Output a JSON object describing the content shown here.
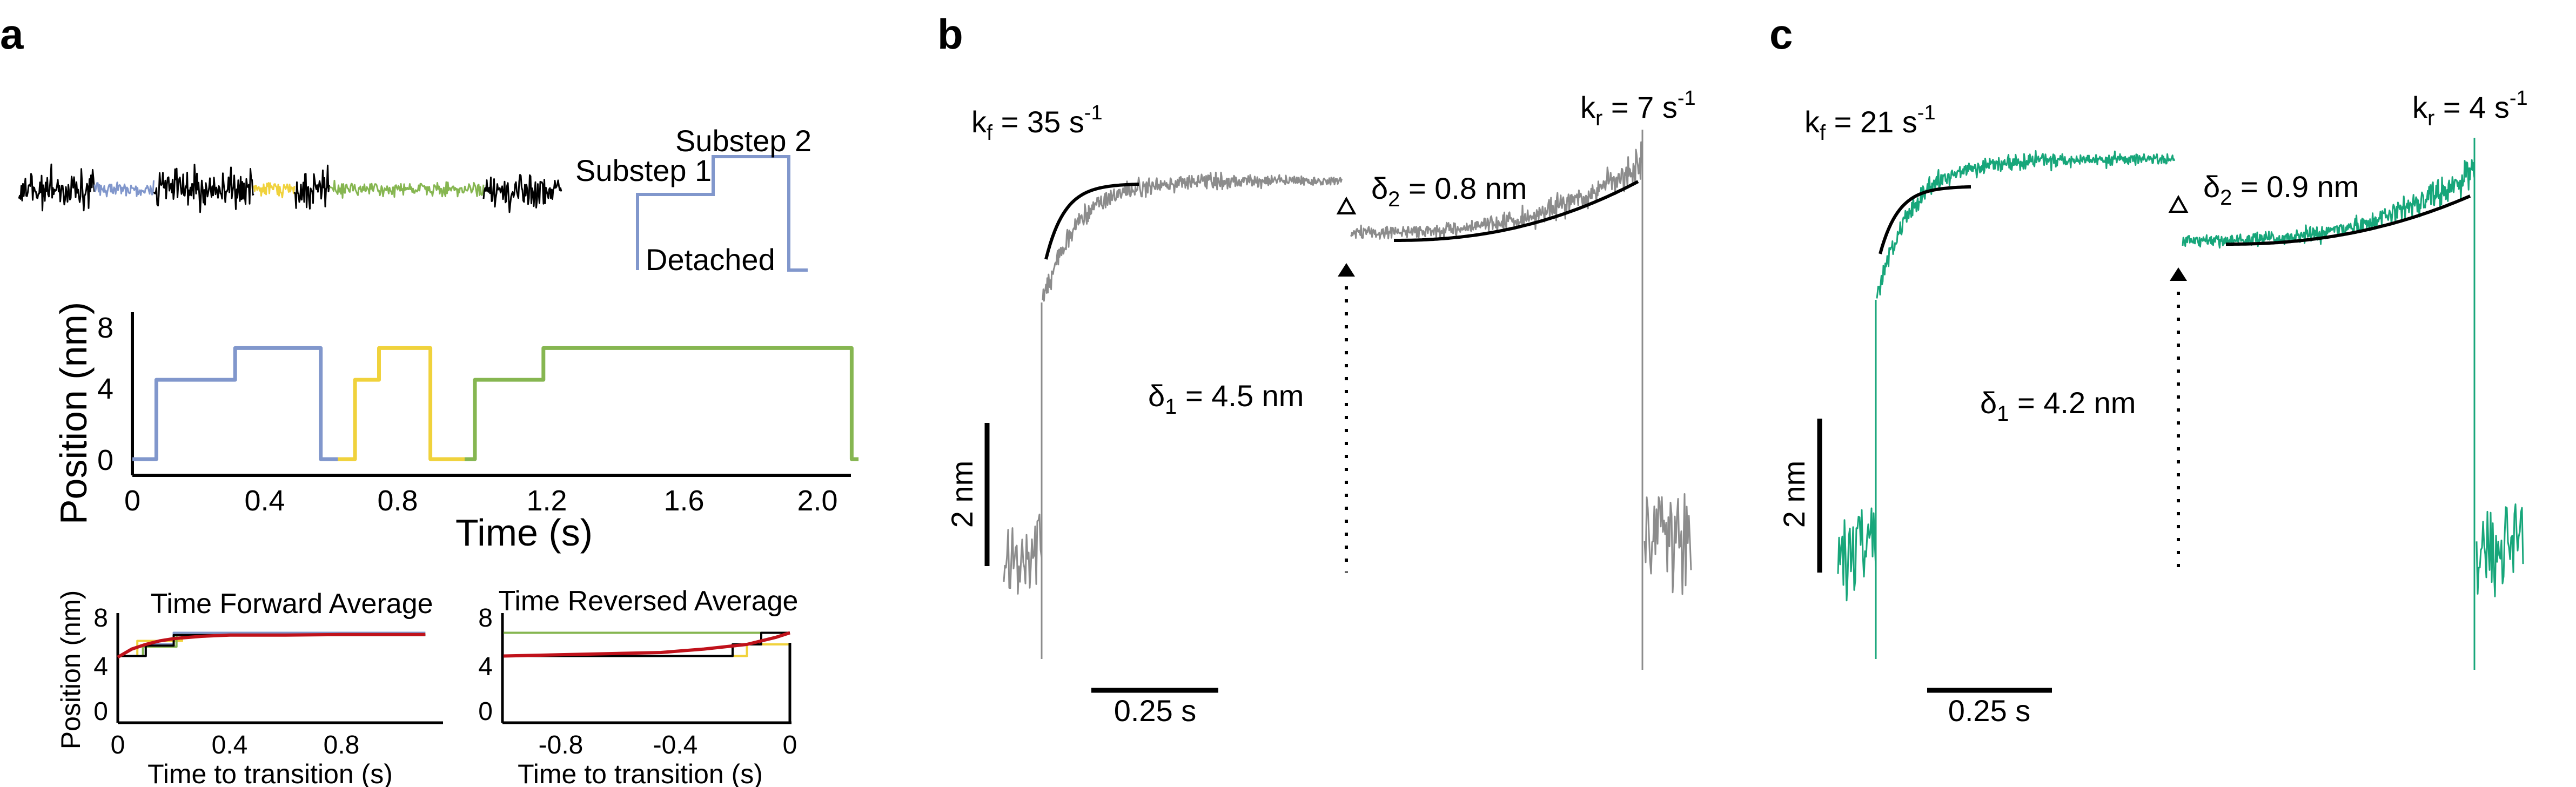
{
  "panels": {
    "a": {
      "letter": "a",
      "schematic": {
        "labels": {
          "substep1": "Substep 1",
          "substep2": "Substep 2",
          "detached": "Detached"
        }
      },
      "step_chart": {
        "ylabel": "Position (nm)",
        "xlabel": "Time (s)",
        "yticks": [
          "0",
          "4",
          "8"
        ],
        "xticks": [
          "0",
          "0.4",
          "0.8",
          "1.2",
          "1.6",
          "2.0"
        ]
      },
      "forward_avg": {
        "title": "Time Forward Average",
        "ylabel": "Position (nm)",
        "xlabel": "Time to transition (s)",
        "yticks": [
          "0",
          "4",
          "8"
        ],
        "xticks": [
          "0",
          "0.4",
          "0.8"
        ]
      },
      "reversed_avg": {
        "title": "Time Reversed Average",
        "xlabel": "Time to transition (s)",
        "yticks": [
          "0",
          "4",
          "8"
        ],
        "xticks": [
          "-0.8",
          "-0.4",
          "0"
        ]
      }
    },
    "b": {
      "letter": "b",
      "kf_prefix": "k",
      "kf_sub": "f",
      "kf_val": " = 35 s",
      "kf_sup": "-1",
      "kr_prefix": "k",
      "kr_sub": "r",
      "kr_val": " = 7 s",
      "kr_sup": "-1",
      "d1_prefix": "δ",
      "d1_sub": "1",
      "d1_val": " = 4.5 nm",
      "d2_prefix": "δ",
      "d2_sub": "2",
      "d2_val": " = 0.8 nm",
      "scale_y": "2 nm",
      "scale_x": "0.25 s",
      "color": "#8c8c8c"
    },
    "c": {
      "letter": "c",
      "kf_prefix": "k",
      "kf_sub": "f",
      "kf_val": " = 21 s",
      "kf_sup": "-1",
      "kr_prefix": "k",
      "kr_sub": "r",
      "kr_val": " = 4 s",
      "kr_sup": "-1",
      "d1_prefix": "δ",
      "d1_sub": "1",
      "d1_val": " = 4.2 nm",
      "d2_prefix": "δ",
      "d2_sub": "2",
      "d2_val": " = 0.9 nm",
      "scale_y": "2 nm",
      "scale_x": "0.25 s",
      "color": "#17a67a"
    }
  },
  "colors": {
    "blue": "#8197cc",
    "yellow": "#f0d23c",
    "green": "#86b651",
    "red": "#c0121b",
    "black": "#000000"
  },
  "chart_data": [
    {
      "type": "line",
      "xlabel": "Time (s)",
      "ylabel": "Position (nm)",
      "xlim": [
        0,
        2.1
      ],
      "ylim": [
        0,
        8
      ],
      "series": [
        {
          "x": [
            0,
            0.07,
            0.07,
            0.3,
            0.3,
            0.55,
            0.55,
            0.6
          ],
          "y": [
            0,
            0,
            5,
            5,
            7,
            7,
            0,
            0
          ]
        },
        {
          "x": [
            0.6,
            0.65,
            0.65,
            0.72,
            0.72,
            0.87,
            0.87,
            0.97
          ],
          "y": [
            0,
            0,
            5,
            5,
            7,
            7,
            0,
            0
          ]
        },
        {
          "x": [
            0.97,
            1.0,
            1.0,
            1.2,
            1.2,
            2.1,
            2.1,
            2.12
          ],
          "y": [
            0,
            0,
            5,
            5,
            7,
            7,
            0,
            0
          ]
        }
      ]
    },
    {
      "type": "line",
      "title": "Time Forward Average",
      "xlabel": "Time to transition (s)",
      "ylabel": "Position (nm)",
      "xlim": [
        0,
        1.1
      ],
      "ylim": [
        0,
        8
      ],
      "series": [
        {
          "x": [
            0,
            0.07,
            0.07,
            0.23,
            0.23,
            1.1
          ],
          "y": [
            5,
            5,
            6.3,
            6.3,
            7,
            7
          ]
        },
        {
          "x": [
            0,
            0.1,
            0.1,
            0.2,
            0.2,
            1.1
          ],
          "y": [
            5,
            5,
            6,
            6,
            7,
            7
          ]
        },
        {
          "x": [
            0,
            0.09,
            0.09,
            0.21,
            0.21,
            1.1
          ],
          "y": [
            5,
            5,
            5.8,
            5.8,
            6.8,
            6.8
          ]
        },
        {
          "x": [
            0,
            0.1,
            0.1,
            0.2,
            0.2,
            1.1
          ],
          "y": [
            5,
            5,
            5.9,
            5.9,
            6.8,
            6.8
          ]
        },
        {
          "x": [
            0,
            0.05,
            0.1,
            0.15,
            0.2,
            0.3,
            0.4,
            0.6,
            0.8,
            1.1
          ],
          "y": [
            4.9,
            5.6,
            6.0,
            6.3,
            6.5,
            6.7,
            6.8,
            6.8,
            6.85,
            6.85
          ]
        }
      ]
    },
    {
      "type": "line",
      "title": "Time Reversed Average",
      "xlabel": "Time to transition (s)",
      "xlim": [
        -1.0,
        0
      ],
      "ylim": [
        0,
        8
      ],
      "series": [
        {
          "x": [
            -1.0,
            -0.25,
            -0.25,
            0
          ],
          "y": [
            7,
            7,
            7,
            7
          ]
        },
        {
          "x": [
            -1.0,
            -0.15,
            -0.15,
            0
          ],
          "y": [
            5,
            5,
            6,
            6
          ]
        },
        {
          "x": [
            -1.0,
            -0.2,
            -0.2,
            -0.1,
            -0.1,
            0
          ],
          "y": [
            5,
            5,
            6,
            6,
            7,
            7
          ]
        },
        {
          "x": [
            -1.0,
            -0.45,
            -0.3,
            -0.15,
            -0.05,
            0
          ],
          "y": [
            5.0,
            5.3,
            5.6,
            6.0,
            6.6,
            7.0
          ]
        }
      ]
    }
  ]
}
